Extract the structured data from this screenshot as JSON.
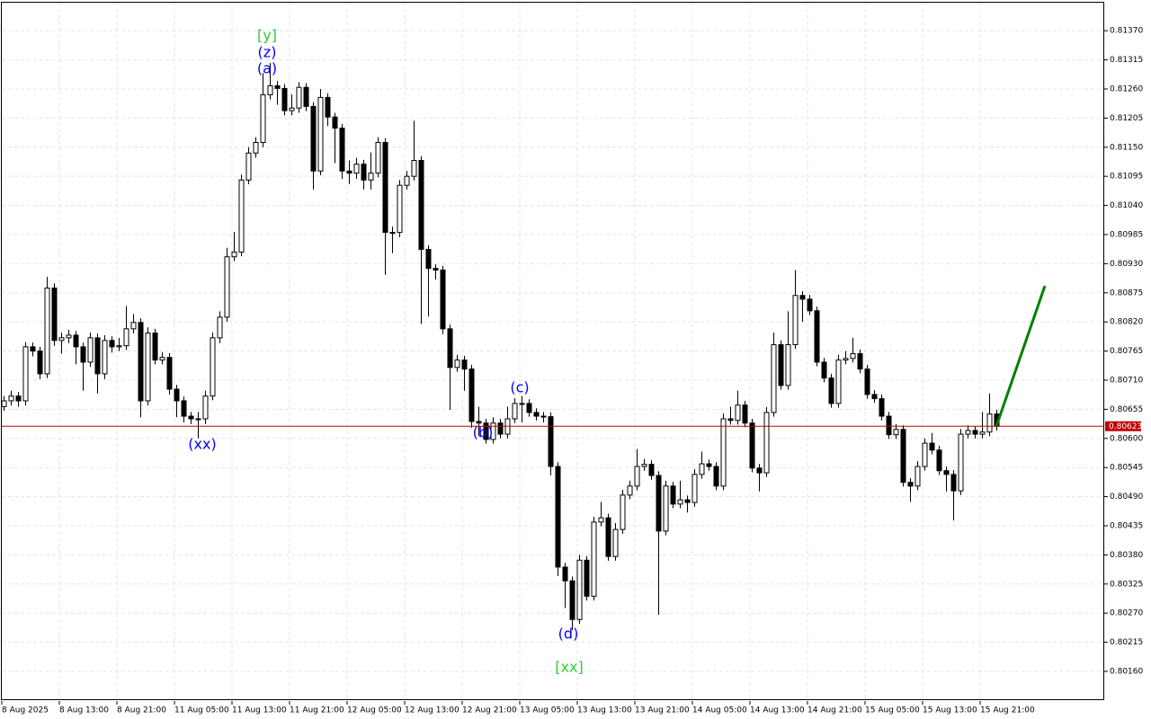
{
  "chart_data": {
    "type": "candlestick",
    "categories": [
      "8 Aug 2025",
      null,
      null,
      null,
      null,
      null,
      null,
      null,
      "8 Aug 13:00",
      null,
      null,
      null,
      null,
      null,
      null,
      null,
      "8 Aug 21:00",
      null,
      null,
      null,
      null,
      null,
      null,
      null,
      "11 Aug 05:00",
      null,
      null,
      null,
      null,
      null,
      null,
      null,
      "11 Aug 13:00",
      null,
      null,
      null,
      null,
      null,
      null,
      null,
      "11 Aug 21:00",
      null,
      null,
      null,
      null,
      null,
      null,
      null,
      "12 Aug 05:00",
      null,
      null,
      null,
      null,
      null,
      null,
      null,
      "12 Aug 13:00",
      null,
      null,
      null,
      null,
      null,
      null,
      null,
      "12 Aug 21:00",
      null,
      null,
      null,
      null,
      null,
      null,
      null,
      "13 Aug 05:00",
      null,
      null,
      null,
      null,
      null,
      null,
      null,
      "13 Aug 13:00",
      null,
      null,
      null,
      null,
      null,
      null,
      null,
      "13 Aug 21:00",
      null,
      null,
      null,
      null,
      null,
      null,
      null,
      "14 Aug 05:00",
      null,
      null,
      null,
      null,
      null,
      null,
      null,
      "14 Aug 13:00",
      null,
      null,
      null,
      null,
      null,
      null,
      null,
      "14 Aug 21:00",
      null,
      null,
      null,
      null,
      null,
      null,
      null,
      "15 Aug 05:00",
      null,
      null,
      null,
      null,
      null,
      null,
      null,
      "15 Aug 13:00",
      null,
      null,
      null,
      null,
      null,
      null,
      null,
      "15 Aug 21:00",
      null,
      null
    ],
    "open": [
      0.8066,
      0.80671,
      0.8068,
      0.80671,
      0.80773,
      0.80765,
      0.80722,
      0.80884,
      0.80785,
      0.8079,
      0.80795,
      0.80773,
      0.80744,
      0.8079,
      0.80722,
      0.80785,
      0.80773,
      0.80775,
      0.80807,
      0.80819,
      0.80671,
      0.80799,
      0.80748,
      0.80753,
      0.80693,
      0.80671,
      0.80642,
      0.80637,
      0.80637,
      0.8068,
      0.8079,
      0.80829,
      0.80943,
      0.80952,
      0.81088,
      0.81139,
      0.81159,
      0.81249,
      0.81266,
      0.81261,
      0.81219,
      0.81224,
      0.81263,
      0.81227,
      0.81105,
      0.81244,
      0.81207,
      0.81186,
      0.81105,
      0.81101,
      0.81118,
      0.81088,
      0.81101,
      0.81159,
      0.80989,
      0.80989,
      0.81078,
      0.81095,
      0.81125,
      0.80957,
      0.80921,
      0.80918,
      0.80807,
      0.80734,
      0.80748,
      0.80731,
      0.80632,
      0.80629,
      0.80598,
      0.80629,
      0.80608,
      0.80637,
      0.80666,
      0.80666,
      0.80649,
      0.80642,
      0.80641,
      0.80547,
      0.80357,
      0.80331,
      0.80258,
      0.8037,
      0.80302,
      0.80442,
      0.8045,
      0.80377,
      0.80428,
      0.80493,
      0.8051,
      0.80547,
      0.80551,
      0.8053,
      0.80425,
      0.8051,
      0.80476,
      0.80484,
      0.80479,
      0.80532,
      0.80552,
      0.80547,
      0.8051,
      0.80637,
      0.80634,
      0.80663,
      0.80629,
      0.80544,
      0.80535,
      0.80649,
      0.80777,
      0.807,
      0.80777,
      0.8087,
      0.80863,
      0.80841,
      0.80744,
      0.80714,
      0.80666,
      0.80748,
      0.80751,
      0.8076,
      0.80731,
      0.80683,
      0.80675,
      0.80642,
      0.80607,
      0.80617,
      0.80517,
      0.8051,
      0.80547,
      0.80591,
      0.80578,
      0.80539,
      0.80532,
      0.80501,
      0.80608,
      0.80615,
      0.80608,
      0.80612,
      0.80646
    ],
    "high": [
      0.8068,
      0.8069,
      0.80688,
      0.80782,
      0.80781,
      0.80773,
      0.80905,
      0.80893,
      0.808,
      0.80805,
      0.80803,
      0.80781,
      0.808,
      0.80798,
      0.80795,
      0.80793,
      0.8079,
      0.8085,
      0.80835,
      0.80827,
      0.8081,
      0.80807,
      0.80763,
      0.80761,
      0.80701,
      0.80679,
      0.8065,
      0.8065,
      0.8069,
      0.808,
      0.8084,
      0.8096,
      0.8099,
      0.81098,
      0.8115,
      0.81169,
      0.8129,
      0.81309,
      0.81275,
      0.81269,
      0.8125,
      0.81273,
      0.81271,
      0.81235,
      0.8126,
      0.81252,
      0.81215,
      0.81194,
      0.81125,
      0.8113,
      0.81126,
      0.8114,
      0.81169,
      0.81167,
      0.81,
      0.81088,
      0.81105,
      0.812,
      0.81133,
      0.80965,
      0.80929,
      0.80926,
      0.80815,
      0.80758,
      0.80756,
      0.80739,
      0.8066,
      0.80637,
      0.8064,
      0.80637,
      0.8066,
      0.80676,
      0.8068,
      0.80674,
      0.80657,
      0.8065,
      0.80649,
      0.80555,
      0.80365,
      0.80339,
      0.8038,
      0.80378,
      0.80452,
      0.8048,
      0.80458,
      0.8044,
      0.80503,
      0.8052,
      0.8058,
      0.80561,
      0.80559,
      0.80538,
      0.8052,
      0.80518,
      0.8052,
      0.80492,
      0.80542,
      0.80575,
      0.8056,
      0.80555,
      0.80647,
      0.8066,
      0.8069,
      0.80671,
      0.80637,
      0.80552,
      0.80659,
      0.808,
      0.80785,
      0.8084,
      0.80918,
      0.80878,
      0.80871,
      0.80849,
      0.80752,
      0.80722,
      0.80758,
      0.80765,
      0.8079,
      0.80768,
      0.80739,
      0.80691,
      0.80683,
      0.8065,
      0.80627,
      0.80625,
      0.80525,
      0.80557,
      0.806,
      0.8061,
      0.80586,
      0.80547,
      0.8054,
      0.80618,
      0.80625,
      0.80623,
      0.8065,
      0.80685,
      0.80654
    ],
    "low": [
      0.80652,
      0.80662,
      0.8066,
      0.80662,
      0.80755,
      0.80712,
      0.80714,
      0.80775,
      0.8076,
      0.8078,
      0.8074,
      0.8069,
      0.80735,
      0.80685,
      0.80712,
      0.80762,
      0.80765,
      0.80767,
      0.80798,
      0.8064,
      0.80662,
      0.8074,
      0.8074,
      0.80683,
      0.8064,
      0.8063,
      0.80627,
      0.806,
      0.80627,
      0.80672,
      0.8078,
      0.8082,
      0.80935,
      0.80944,
      0.8108,
      0.8113,
      0.8115,
      0.8124,
      0.8123,
      0.8121,
      0.8121,
      0.81215,
      0.81218,
      0.8107,
      0.81097,
      0.8119,
      0.8112,
      0.8109,
      0.8108,
      0.8109,
      0.8107,
      0.8107,
      0.81093,
      0.80909,
      0.8095,
      0.8098,
      0.8107,
      0.81087,
      0.80816,
      0.8083,
      0.809,
      0.80797,
      0.80654,
      0.80726,
      0.8069,
      0.8062,
      0.80605,
      0.8059,
      0.8059,
      0.806,
      0.806,
      0.80629,
      0.8063,
      0.80641,
      0.80634,
      0.8063,
      0.8053,
      0.8034,
      0.8028,
      0.80238,
      0.8025,
      0.80294,
      0.80294,
      0.80434,
      0.80369,
      0.80369,
      0.8042,
      0.80485,
      0.80502,
      0.80539,
      0.80522,
      0.80267,
      0.80417,
      0.80468,
      0.80468,
      0.8046,
      0.80471,
      0.80524,
      0.80539,
      0.80502,
      0.80502,
      0.80626,
      0.80626,
      0.80621,
      0.80536,
      0.805,
      0.80527,
      0.80641,
      0.80692,
      0.80692,
      0.80769,
      0.8082,
      0.80833,
      0.80736,
      0.80706,
      0.80658,
      0.80658,
      0.8074,
      0.80743,
      0.80723,
      0.80675,
      0.80667,
      0.80634,
      0.80599,
      0.80599,
      0.80509,
      0.8048,
      0.80502,
      0.80539,
      0.8057,
      0.80531,
      0.805,
      0.80445,
      0.80493,
      0.806,
      0.806,
      0.806,
      0.80604,
      0.80615
    ],
    "close": [
      0.80671,
      0.8068,
      0.80671,
      0.80773,
      0.80765,
      0.80722,
      0.80884,
      0.80785,
      0.8079,
      0.80795,
      0.80773,
      0.80744,
      0.8079,
      0.80722,
      0.80785,
      0.80773,
      0.80775,
      0.80807,
      0.80819,
      0.80671,
      0.80799,
      0.80748,
      0.80753,
      0.80693,
      0.80671,
      0.80642,
      0.80637,
      0.80637,
      0.8068,
      0.8079,
      0.80829,
      0.80943,
      0.80952,
      0.81088,
      0.81139,
      0.81159,
      0.81249,
      0.81266,
      0.81261,
      0.81219,
      0.81224,
      0.81263,
      0.81227,
      0.81105,
      0.81244,
      0.81207,
      0.81186,
      0.81105,
      0.81101,
      0.81118,
      0.81088,
      0.81101,
      0.81159,
      0.80989,
      0.80989,
      0.81078,
      0.81095,
      0.81125,
      0.80957,
      0.80921,
      0.80918,
      0.80807,
      0.80734,
      0.80748,
      0.80731,
      0.80632,
      0.80629,
      0.80598,
      0.80629,
      0.80608,
      0.80637,
      0.80666,
      0.80666,
      0.80649,
      0.80642,
      0.80641,
      0.80547,
      0.80357,
      0.80331,
      0.80258,
      0.8037,
      0.80302,
      0.80442,
      0.8045,
      0.80377,
      0.80428,
      0.80493,
      0.8051,
      0.80547,
      0.80551,
      0.8053,
      0.80425,
      0.8051,
      0.80476,
      0.80484,
      0.80479,
      0.80532,
      0.80552,
      0.80547,
      0.8051,
      0.80637,
      0.80634,
      0.80663,
      0.80629,
      0.80544,
      0.80535,
      0.80649,
      0.80777,
      0.807,
      0.80777,
      0.8087,
      0.80863,
      0.80841,
      0.80744,
      0.80714,
      0.80666,
      0.80748,
      0.80751,
      0.8076,
      0.80731,
      0.80683,
      0.80675,
      0.80642,
      0.80607,
      0.80617,
      0.80517,
      0.8051,
      0.80547,
      0.80591,
      0.80578,
      0.80539,
      0.80532,
      0.80501,
      0.80608,
      0.80615,
      0.80608,
      0.80612,
      0.80646,
      0.80623
    ],
    "ylim": [
      0.80104,
      0.81428
    ],
    "yticks": [
      {
        "value": 0.8137,
        "label": "0.81370"
      },
      0.81315,
      {
        "value": 0.8126,
        "label": "0.81260"
      },
      0.81205,
      {
        "value": 0.8115,
        "label": "0.81150"
      },
      0.81095,
      {
        "value": 0.8104,
        "label": "0.81040"
      },
      0.80985,
      {
        "value": 0.8093,
        "label": "0.80930"
      },
      0.80875,
      {
        "value": 0.8082,
        "label": "0.80820"
      },
      0.80765,
      {
        "value": 0.8071,
        "label": "0.80710"
      },
      0.80655,
      {
        "value": 0.806,
        "label": "0.80600"
      },
      0.80545,
      {
        "value": 0.8049,
        "label": "0.80490"
      },
      0.80435,
      {
        "value": 0.8038,
        "label": "0.80380"
      },
      0.80325,
      {
        "value": 0.8027,
        "label": "0.80270"
      },
      0.80215,
      {
        "value": 0.8016,
        "label": "0.80160"
      }
    ],
    "grid": true,
    "current_price": 0.80623,
    "current_price_color": "#c00000",
    "forecast": [
      0.80623,
      0.80888
    ],
    "forecast_color": "#008000",
    "annotations": [
      {
        "text": "[y]",
        "color": "#33cc33"
      },
      {
        "text": "(z)",
        "color": "#0000ff"
      },
      {
        "text": "(a)",
        "color": "#0000ff"
      },
      {
        "text": "(xx)",
        "color": "#0000ff"
      },
      {
        "text": "(b)",
        "color": "#0000ff"
      },
      {
        "text": "(c)",
        "color": "#0000ff"
      },
      {
        "text": "(d)",
        "color": "#0000ff"
      },
      {
        "text": "[xx]",
        "color": "#33cc33"
      }
    ]
  }
}
